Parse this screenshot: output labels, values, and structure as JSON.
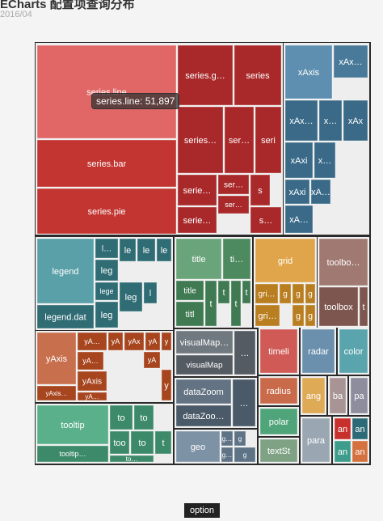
{
  "header": {
    "title": "ECharts 配置项查询分布",
    "subtitle": "2016/04"
  },
  "tooltip": {
    "text": "series.line: 51,897"
  },
  "breadcrumb": {
    "label": "option"
  },
  "chart_data": {
    "type": "treemap",
    "title": "ECharts 配置项查询分布",
    "subtitle": "2016/04",
    "palette": {
      "series": "#c23531",
      "xAxis": "#3a6a87",
      "legend": "#2f6c74",
      "title": "#3f7a52",
      "grid": "#d49a3b",
      "toolbox": "#8a6059",
      "yAxis": "#b8512f",
      "visualMap": "#555b63",
      "timeline": "#c23531",
      "radar": "#5e87a6",
      "color": "#4a9aa5",
      "tooltip": "#3d9a78",
      "dataZoom": "#4a5a68",
      "geo": "#6e8296",
      "radiusAxis": "#c96a4b",
      "polar": "#4a9a72",
      "textStyle": "#7a9a7e",
      "angleAxis": "#d69e4a",
      "backgroundColor": "#a09090",
      "parallel": "#8a8a9a",
      "parallelAxis": "#98a4b0",
      "animation": "#c23531",
      "ani_green": "#3d8a7a",
      "ani_orange": "#d06a3e"
    },
    "groups": [
      {
        "name": "series",
        "children": [
          {
            "name": "series.line",
            "value": 51897,
            "color": "#e06765"
          },
          {
            "name": "series.bar",
            "color": "#c23531"
          },
          {
            "name": "series.pie",
            "color": "#c23531"
          },
          {
            "name": "series.g…",
            "color": "#a9292a"
          },
          {
            "name": "series",
            "color": "#a9292a"
          },
          {
            "name": "series…",
            "color": "#a9292a"
          },
          {
            "name": "ser…",
            "color": "#a9292a"
          },
          {
            "name": "seri…",
            "color": "#a9292a"
          },
          {
            "name": "serie…",
            "color": "#a9292a"
          },
          {
            "name": "ser…",
            "color": "#a9292a"
          },
          {
            "name": "s",
            "color": "#a9292a"
          },
          {
            "name": "serie…",
            "color": "#a9292a"
          },
          {
            "name": "ser…",
            "color": "#a9292a"
          },
          {
            "name": "s…",
            "color": "#a9292a"
          }
        ]
      },
      {
        "name": "xAxis",
        "children": [
          {
            "name": "xAxis",
            "color": "#5f8fb0"
          },
          {
            "name": "xAx…",
            "color": "#4a7a99"
          },
          {
            "name": "xAx…",
            "color": "#3a6a87"
          },
          {
            "name": "x…",
            "color": "#3a6a87"
          },
          {
            "name": "xAx",
            "color": "#3a6a87"
          },
          {
            "name": "xAxi…",
            "color": "#3a6a87"
          },
          {
            "name": "x…",
            "color": "#3a6a87"
          },
          {
            "name": "xAxi…",
            "color": "#3a6a87"
          },
          {
            "name": "xA…",
            "color": "#3a6a87"
          },
          {
            "name": "xA…",
            "color": "#3a6a87"
          }
        ]
      },
      {
        "name": "legend",
        "children": [
          {
            "name": "legend",
            "color": "#5aa0a8"
          },
          {
            "name": "legend.data",
            "color": "#2f6c74"
          },
          {
            "name": "l…",
            "color": "#2f6c74"
          },
          {
            "name": "le…",
            "color": "#2f6c74"
          },
          {
            "name": "le…",
            "color": "#2f6c74"
          },
          {
            "name": "leg",
            "color": "#2f6c74"
          },
          {
            "name": "lege…",
            "color": "#2f6c74"
          },
          {
            "name": "lege…",
            "color": "#2f6c74"
          },
          {
            "name": "lege…",
            "color": "#2f6c74"
          },
          {
            "name": "leg…",
            "color": "#2f6c74"
          },
          {
            "name": "le…",
            "color": "#2f6c74"
          }
        ]
      },
      {
        "name": "title",
        "children": [
          {
            "name": "title",
            "color": "#6aa47a"
          },
          {
            "name": "ti…",
            "color": "#4d8a5f"
          },
          {
            "name": "title…",
            "color": "#3f7a52"
          },
          {
            "name": "title…",
            "color": "#3f7a52"
          },
          {
            "name": "titl…",
            "color": "#3f7a52"
          },
          {
            "name": "tit",
            "color": "#3f7a52"
          },
          {
            "name": "tit",
            "color": "#3f7a52"
          },
          {
            "name": "ti",
            "color": "#3f7a52"
          }
        ]
      },
      {
        "name": "grid",
        "children": [
          {
            "name": "grid",
            "color": "#e0a54a"
          },
          {
            "name": "gri…",
            "color": "#b97e1f"
          },
          {
            "name": "gr",
            "color": "#b97e1f"
          },
          {
            "name": "gr",
            "color": "#b97e1f"
          },
          {
            "name": "gr",
            "color": "#b97e1f"
          },
          {
            "name": "gri…",
            "color": "#b97e1f"
          },
          {
            "name": "g",
            "color": "#b97e1f"
          },
          {
            "name": "g",
            "color": "#b97e1f"
          }
        ]
      },
      {
        "name": "toolbox",
        "children": [
          {
            "name": "toolbo…",
            "color": "#a07a72"
          },
          {
            "name": "toolbox",
            "color": "#7d564f"
          },
          {
            "name": "t",
            "color": "#7d564f"
          }
        ]
      },
      {
        "name": "yAxis",
        "children": [
          {
            "name": "yAxis",
            "color": "#c8704e"
          },
          {
            "name": "yAxis…",
            "color": "#a7451f"
          },
          {
            "name": "yA…",
            "color": "#a7451f"
          },
          {
            "name": "yA…",
            "color": "#a7451f"
          },
          {
            "name": "yA…",
            "color": "#a7451f"
          },
          {
            "name": "yAxis…",
            "color": "#a7451f"
          },
          {
            "name": "yA…",
            "color": "#a7451f"
          },
          {
            "name": "yAx",
            "color": "#a7451f"
          },
          {
            "name": "yA",
            "color": "#a7451f"
          },
          {
            "name": "yA",
            "color": "#a7451f"
          },
          {
            "name": "y",
            "color": "#a7451f"
          },
          {
            "name": "y",
            "color": "#a7451f"
          }
        ]
      },
      {
        "name": "visualMap",
        "children": [
          {
            "name": "visualMap…",
            "color": "#707880"
          },
          {
            "name": "visualMap",
            "color": "#555b63"
          },
          {
            "name": "…",
            "color": "#555b63"
          }
        ]
      },
      {
        "name": "timeline",
        "children": [
          {
            "name": "timeline",
            "color": "#d05a55"
          }
        ]
      },
      {
        "name": "radar",
        "children": [
          {
            "name": "radar",
            "color": "#6a90ae"
          }
        ]
      },
      {
        "name": "color",
        "children": [
          {
            "name": "color",
            "color": "#5aa5ad"
          }
        ]
      },
      {
        "name": "tooltip",
        "children": [
          {
            "name": "tooltip",
            "color": "#5ab08b"
          },
          {
            "name": "tooltip…",
            "color": "#3d8a6a"
          },
          {
            "name": "to",
            "color": "#3d8a6a"
          },
          {
            "name": "to",
            "color": "#3d8a6a"
          },
          {
            "name": "tooltip…",
            "color": "#3d8a6a"
          },
          {
            "name": "to",
            "color": "#3d8a6a"
          },
          {
            "name": "t",
            "color": "#3d8a6a"
          },
          {
            "name": "to…",
            "color": "#3d8a6a"
          }
        ]
      },
      {
        "name": "dataZoom",
        "children": [
          {
            "name": "dataZoom",
            "color": "#637383"
          },
          {
            "name": "dataZoo…",
            "color": "#4a5a68"
          },
          {
            "name": "…",
            "color": "#4a5a68"
          }
        ]
      },
      {
        "name": "geo",
        "children": [
          {
            "name": "geo",
            "color": "#7e92a6"
          },
          {
            "name": "g…",
            "color": "#5f7386"
          },
          {
            "name": "g",
            "color": "#5f7386"
          },
          {
            "name": "g…",
            "color": "#5f7386"
          },
          {
            "name": "g",
            "color": "#5f7386"
          }
        ]
      },
      {
        "name": "radiusAxis",
        "children": [
          {
            "name": "radiusA…",
            "color": "#c96a4b"
          }
        ]
      },
      {
        "name": "polar",
        "children": [
          {
            "name": "polar",
            "color": "#4fa47a"
          }
        ]
      },
      {
        "name": "textStyle",
        "children": [
          {
            "name": "textStyle",
            "color": "#7fa284"
          }
        ]
      },
      {
        "name": "angleAxis",
        "children": [
          {
            "name": "ang…",
            "color": "#deaa56"
          }
        ]
      },
      {
        "name": "backgroundColor",
        "children": [
          {
            "name": "ba…",
            "color": "#a89494"
          }
        ]
      },
      {
        "name": "parallel",
        "children": [
          {
            "name": "par",
            "color": "#8d8d9e"
          }
        ]
      },
      {
        "name": "parallelAxis",
        "children": [
          {
            "name": "para…",
            "color": "#9aa6b2"
          }
        ]
      },
      {
        "name": "animation",
        "children": [
          {
            "name": "an",
            "color": "#c8302c"
          },
          {
            "name": "ani",
            "color": "#2d6a78"
          },
          {
            "name": "ani",
            "color": "#3e9c8c"
          },
          {
            "name": "ani",
            "color": "#d5703f"
          }
        ]
      }
    ]
  }
}
